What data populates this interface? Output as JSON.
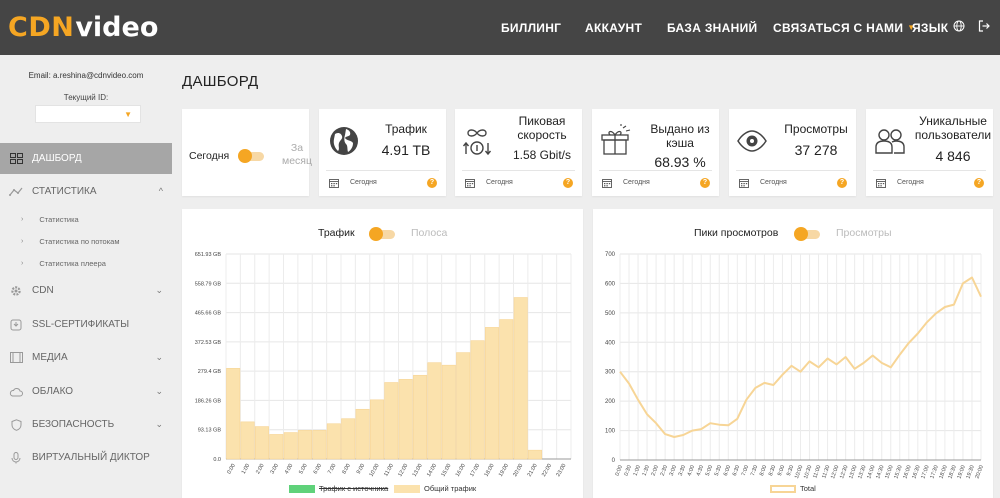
{
  "brand": {
    "logo_main": "CDN",
    "logo_sub": "video",
    "accent": "#f5a623",
    "topbar_bg": "#454545"
  },
  "nav": {
    "billing": "БИЛЛИНГ",
    "account": "АККАУНТ",
    "knowledge": "БАЗА ЗНАНИЙ",
    "contact": "СВЯЗАТЬСЯ С НАМИ",
    "language": "ЯЗЫК"
  },
  "sidebar": {
    "email": "Email: a.reshina@cdnvideo.com",
    "client_label": "Текущий ID:",
    "client_value": "",
    "items": [
      {
        "label": "ДАШБОРД",
        "icon": "dashboard-icon",
        "active": true
      },
      {
        "label": "СТАТИСТИКА",
        "icon": "statistics-icon"
      },
      {
        "label": "CDN",
        "icon": "cdn-gear-icon"
      },
      {
        "label": "SSL-СЕРТИФИКАТЫ",
        "icon": "ssl-icon"
      },
      {
        "label": "МЕДИА",
        "icon": "media-icon"
      },
      {
        "label": "ОБЛАКО",
        "icon": "cloud-icon"
      },
      {
        "label": "БЕЗОПАСНОСТЬ",
        "icon": "shield-icon"
      },
      {
        "label": "ВИРТУАЛЬНЫЙ ДИКТОР",
        "icon": "microphone-icon"
      }
    ],
    "subitems": [
      "Статистика",
      "Статистика по потокам",
      "Статистика плеера"
    ]
  },
  "page": {
    "title": "ДАШБОРД"
  },
  "period_toggle": {
    "left": "Сегодня",
    "right_1": "За",
    "right_2": "месяц"
  },
  "stats": [
    {
      "title_1": "Трафик",
      "title_2": "",
      "title_3": "",
      "value": "4.91 TB",
      "period": "Сегодня",
      "icon": "globe-traffic-icon"
    },
    {
      "title_1": "Пиковая",
      "title_2": "скорость",
      "title_3": "",
      "value": "1.58 Gbit/s",
      "period": "Сегодня",
      "icon": "infinity-speed-icon"
    },
    {
      "title_1": "Выдано из",
      "title_2": "кэша",
      "title_3": "",
      "value": "68.93 %",
      "period": "Сегодня",
      "icon": "gift-cache-icon"
    },
    {
      "title_1": "Просмотры",
      "title_2": "",
      "title_3": "",
      "value": "37 278",
      "period": "Сегодня",
      "icon": "eye-icon"
    },
    {
      "title_1": "Уникальные",
      "title_2": "пользователи",
      "title_3": "",
      "value": "4 846",
      "period": "Сегодня",
      "icon": "users-icon"
    }
  ],
  "traffic_chart": {
    "toggle_left": "Трафик",
    "toggle_right": "Полоса",
    "legend_source": "Трафик с источника",
    "legend_total": "Общий трафик",
    "source_color": "#5fd27a",
    "total_color": "#fbe2ad",
    "total_border": "#f7d596"
  },
  "views_chart": {
    "toggle_left": "Пики просмотров",
    "toggle_right": "Просмотры",
    "legend_total": "Total",
    "line_color": "#f7d596"
  },
  "chart_data": [
    {
      "type": "bar",
      "title": "Трафик",
      "categories": [
        "0:00",
        "1:00",
        "2:00",
        "3:00",
        "4:00",
        "5:00",
        "6:00",
        "7:00",
        "8:00",
        "9:00",
        "10:00",
        "11:00",
        "12:00",
        "13:00",
        "14:00",
        "15:00",
        "16:00",
        "17:00",
        "18:00",
        "19:00",
        "20:00",
        "21:00",
        "22:00",
        "23:00"
      ],
      "series": [
        {
          "name": "Трафик с источника",
          "values": [
            0,
            0,
            0,
            0,
            0,
            0,
            0,
            0,
            0,
            0,
            0,
            0,
            0,
            0,
            0,
            0,
            0,
            0,
            0,
            0,
            0,
            0,
            0,
            0
          ]
        },
        {
          "name": "Общий трафик",
          "values": [
            288,
            118,
            103,
            78,
            84,
            91,
            91,
            112,
            128,
            158,
            188,
            243,
            253,
            266,
            306,
            298,
            338,
            376,
            418,
            443,
            513,
            28,
            0,
            0
          ]
        }
      ],
      "ylim": [
        0,
        651.23
      ],
      "yticks": [
        "0.0",
        "93.13 GB",
        "186.26 GB",
        "279.4 GB",
        "372.53 GB",
        "465.66 GB",
        "558.79 GB",
        "651.93 GB"
      ],
      "legend_position": "bottom",
      "grid": true
    },
    {
      "type": "line",
      "title": "Пики просмотров",
      "x": [
        "0:00",
        "0:30",
        "1:00",
        "1:30",
        "2:00",
        "2:30",
        "3:00",
        "3:30",
        "4:00",
        "4:30",
        "5:00",
        "5:30",
        "6:00",
        "6:30",
        "7:00",
        "7:30",
        "8:00",
        "8:30",
        "9:00",
        "9:30",
        "10:00",
        "10:30",
        "11:00",
        "11:30",
        "12:00",
        "12:30",
        "13:00",
        "13:30",
        "14:00",
        "14:30",
        "15:00",
        "15:30",
        "16:00",
        "16:30",
        "17:00",
        "17:30",
        "18:00",
        "18:30",
        "19:00",
        "19:30",
        "20:00"
      ],
      "series": [
        {
          "name": "Total",
          "values": [
            300,
            260,
            205,
            155,
            125,
            88,
            78,
            85,
            100,
            105,
            125,
            120,
            118,
            140,
            205,
            245,
            262,
            255,
            290,
            320,
            300,
            335,
            315,
            345,
            325,
            350,
            310,
            330,
            355,
            330,
            315,
            358,
            398,
            430,
            468,
            498,
            520,
            528,
            600,
            620,
            555
          ]
        }
      ],
      "ylim": [
        0,
        700
      ],
      "yticks": [
        0,
        100,
        200,
        300,
        400,
        500,
        600,
        700
      ],
      "legend_position": "bottom",
      "grid": true
    }
  ]
}
